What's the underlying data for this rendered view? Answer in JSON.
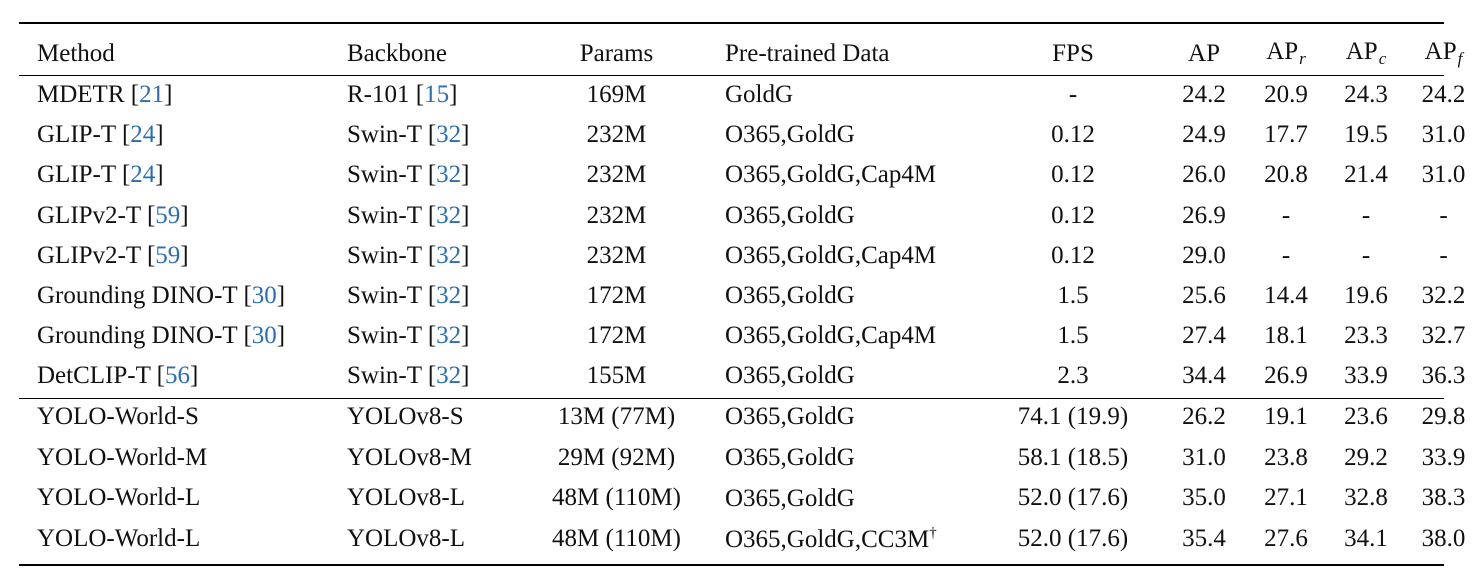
{
  "table": {
    "headers": {
      "method": "Method",
      "backbone": "Backbone",
      "params": "Params",
      "data": "Pre-trained Data",
      "fps": "FPS",
      "ap": "AP",
      "apr": "AP",
      "apr_sub": "r",
      "apc": "AP",
      "apc_sub": "c",
      "apf": "AP",
      "apf_sub": "f"
    },
    "rows_a": [
      {
        "method": "MDETR",
        "method_cite": "21",
        "backbone": "R-101",
        "backbone_cite": "15",
        "params": "169M",
        "data": "GoldG",
        "fps": "-",
        "ap": "24.2",
        "apr": "20.9",
        "apc": "24.3",
        "apf": "24.2"
      },
      {
        "method": "GLIP-T",
        "method_cite": "24",
        "backbone": "Swin-T",
        "backbone_cite": "32",
        "params": "232M",
        "data": "O365,GoldG",
        "fps": "0.12",
        "ap": "24.9",
        "apr": "17.7",
        "apc": "19.5",
        "apf": "31.0"
      },
      {
        "method": "GLIP-T",
        "method_cite": "24",
        "backbone": "Swin-T",
        "backbone_cite": "32",
        "params": "232M",
        "data": "O365,GoldG,Cap4M",
        "fps": "0.12",
        "ap": "26.0",
        "apr": "20.8",
        "apc": "21.4",
        "apf": "31.0"
      },
      {
        "method": "GLIPv2-T",
        "method_cite": "59",
        "backbone": "Swin-T",
        "backbone_cite": "32",
        "params": "232M",
        "data": "O365,GoldG",
        "fps": "0.12",
        "ap": "26.9",
        "apr": "-",
        "apc": "-",
        "apf": "-"
      },
      {
        "method": "GLIPv2-T",
        "method_cite": "59",
        "backbone": "Swin-T",
        "backbone_cite": "32",
        "params": "232M",
        "data": "O365,GoldG,Cap4M",
        "fps": "0.12",
        "ap": "29.0",
        "apr": "-",
        "apc": "-",
        "apf": "-"
      },
      {
        "method": "Grounding DINO-T",
        "method_cite": "30",
        "backbone": "Swin-T",
        "backbone_cite": "32",
        "params": "172M",
        "data": "O365,GoldG",
        "fps": "1.5",
        "ap": "25.6",
        "apr": "14.4",
        "apc": "19.6",
        "apf": "32.2"
      },
      {
        "method": "Grounding DINO-T",
        "method_cite": "30",
        "backbone": "Swin-T",
        "backbone_cite": "32",
        "params": "172M",
        "data": "O365,GoldG,Cap4M",
        "fps": "1.5",
        "ap": "27.4",
        "apr": "18.1",
        "apc": "23.3",
        "apf": "32.7"
      },
      {
        "method": "DetCLIP-T",
        "method_cite": "56",
        "backbone": "Swin-T",
        "backbone_cite": "32",
        "params": "155M",
        "data": "O365,GoldG",
        "fps": "2.3",
        "ap": "34.4",
        "apr": "26.9",
        "apc": "33.9",
        "apf": "36.3"
      }
    ],
    "rows_b": [
      {
        "method": "YOLO-World-S",
        "backbone": "YOLOv8-S",
        "params": "13M (77M)",
        "data": "O365,GoldG",
        "data_sup": "",
        "fps": "74.1 (19.9)",
        "ap": "26.2",
        "apr": "19.1",
        "apc": "23.6",
        "apf": "29.8"
      },
      {
        "method": "YOLO-World-M",
        "backbone": "YOLOv8-M",
        "params": "29M (92M)",
        "data": "O365,GoldG",
        "data_sup": "",
        "fps": "58.1 (18.5)",
        "ap": "31.0",
        "apr": "23.8",
        "apc": "29.2",
        "apf": "33.9"
      },
      {
        "method": "YOLO-World-L",
        "backbone": "YOLOv8-L",
        "params": "48M (110M)",
        "data": "O365,GoldG",
        "data_sup": "",
        "fps": "52.0 (17.6)",
        "ap": "35.0",
        "apr": "27.1",
        "apc": "32.8",
        "apf": "38.3"
      },
      {
        "method": "YOLO-World-L",
        "backbone": "YOLOv8-L",
        "params": "48M (110M)",
        "data": "O365,GoldG,CC3M",
        "data_sup": "†",
        "fps": "52.0 (17.6)",
        "ap": "35.4",
        "apr": "27.6",
        "apc": "34.1",
        "apf": "38.0"
      }
    ]
  }
}
